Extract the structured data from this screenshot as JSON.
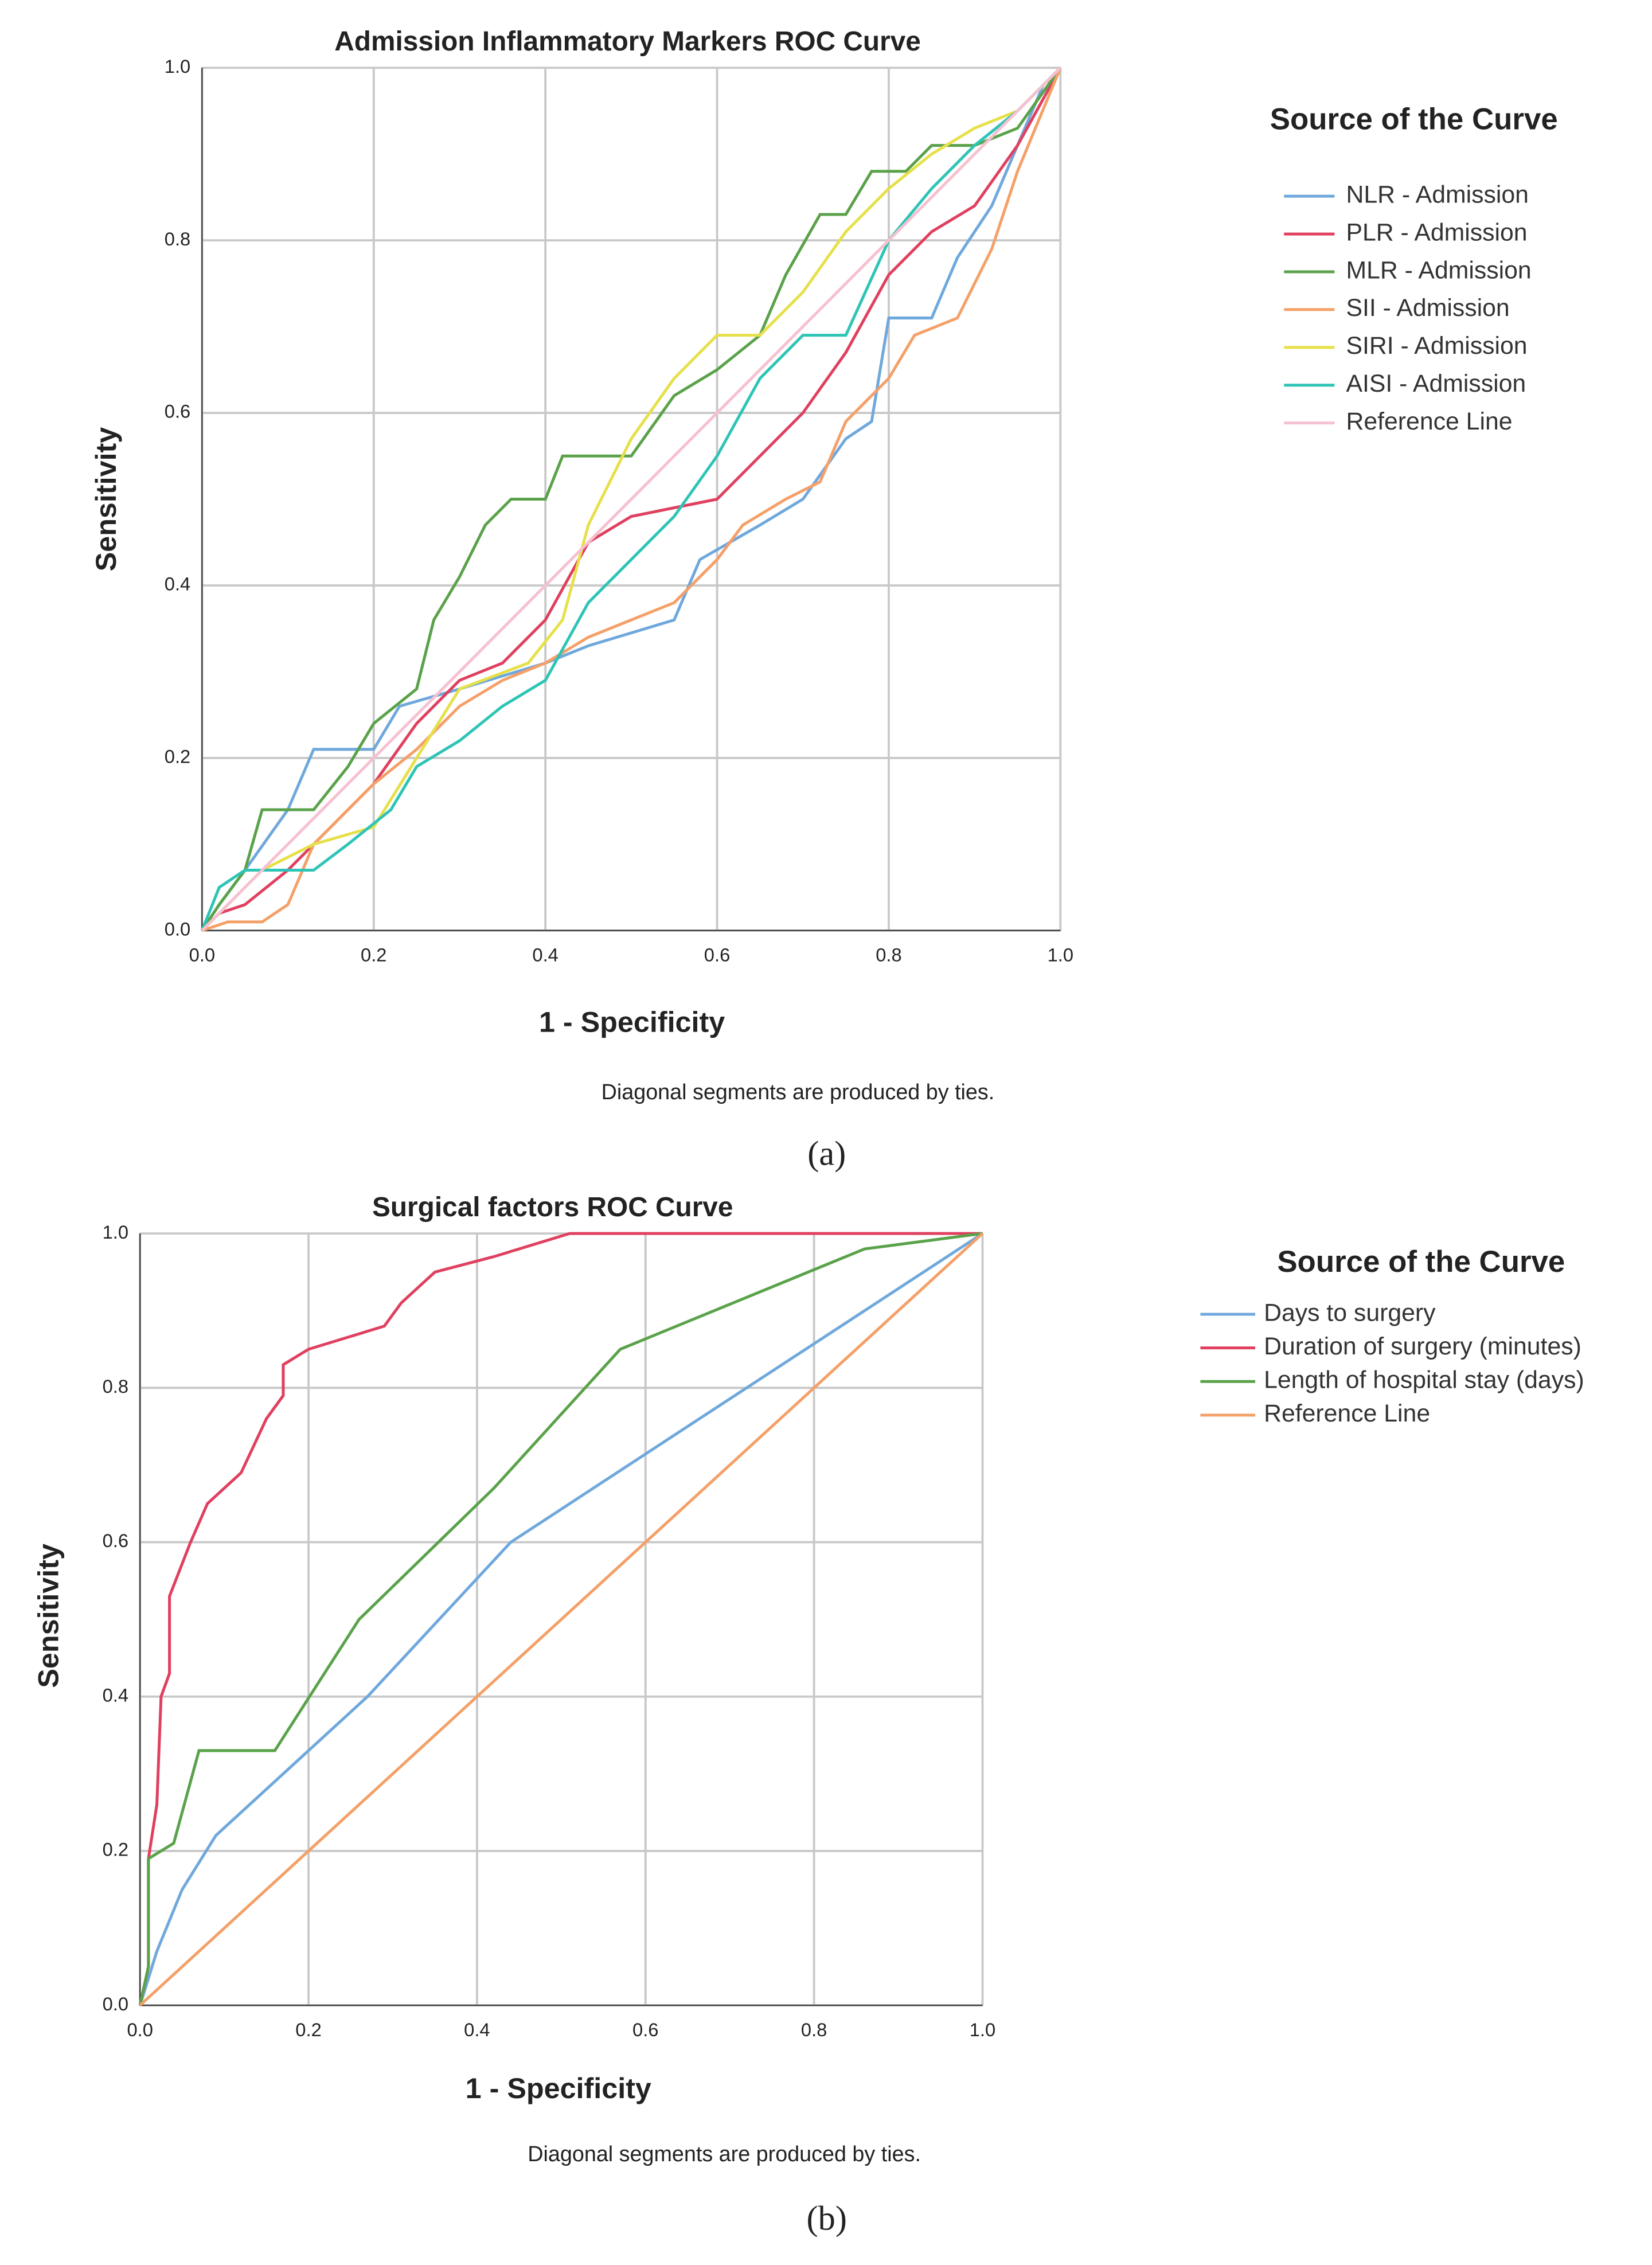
{
  "chart_data": [
    {
      "type": "line",
      "title": "Admission Inflammatory Markers ROC Curve",
      "x_label": "1 - Specificity",
      "y_label": "Sensitivity",
      "legend_title": "Source of the Curve",
      "annotation": "Diagonal segments are produced by ties.",
      "caption": "(a)",
      "grid": true,
      "xlim": [
        0,
        1
      ],
      "ylim": [
        0,
        1
      ],
      "xticks": [
        {
          "value": 0,
          "label": "0.0"
        },
        0.2,
        0.4,
        0.6,
        0.8,
        {
          "value": 1,
          "label": "1.0"
        }
      ],
      "yticks": [
        {
          "value": 0,
          "label": "0.0"
        },
        0.2,
        0.4,
        0.6,
        0.8,
        {
          "value": 1,
          "label": "1.0"
        }
      ],
      "series": [
        {
          "name": "NLR - Admission",
          "color": "#6fa8dc",
          "x": [
            0,
            0.02,
            0.05,
            0.1,
            0.13,
            0.2,
            0.23,
            0.3,
            0.4,
            0.45,
            0.55,
            0.58,
            0.65,
            0.7,
            0.75,
            0.78,
            0.8,
            0.85,
            0.88,
            0.92,
            0.95,
            0.98,
            1
          ],
          "values": [
            0,
            0.03,
            0.07,
            0.14,
            0.21,
            0.21,
            0.26,
            0.28,
            0.31,
            0.33,
            0.36,
            0.43,
            0.47,
            0.5,
            0.57,
            0.59,
            0.71,
            0.71,
            0.78,
            0.84,
            0.91,
            0.98,
            1
          ]
        },
        {
          "name": "PLR - Admission",
          "color": "#e0405f",
          "x": [
            0,
            0.02,
            0.05,
            0.1,
            0.15,
            0.2,
            0.25,
            0.3,
            0.35,
            0.4,
            0.45,
            0.5,
            0.6,
            0.65,
            0.7,
            0.75,
            0.8,
            0.85,
            0.9,
            0.95,
            1
          ],
          "values": [
            0,
            0.02,
            0.03,
            0.07,
            0.12,
            0.17,
            0.24,
            0.29,
            0.31,
            0.36,
            0.45,
            0.48,
            0.5,
            0.55,
            0.6,
            0.67,
            0.76,
            0.81,
            0.84,
            0.91,
            1
          ]
        },
        {
          "name": "MLR - Admission",
          "color": "#5aa24a",
          "x": [
            0,
            0.02,
            0.05,
            0.07,
            0.13,
            0.17,
            0.2,
            0.25,
            0.27,
            0.3,
            0.33,
            0.36,
            0.4,
            0.42,
            0.5,
            0.55,
            0.6,
            0.65,
            0.68,
            0.72,
            0.75,
            0.78,
            0.82,
            0.85,
            0.9,
            0.95,
            1
          ],
          "values": [
            0,
            0.03,
            0.07,
            0.14,
            0.14,
            0.19,
            0.24,
            0.28,
            0.36,
            0.41,
            0.47,
            0.5,
            0.5,
            0.55,
            0.55,
            0.62,
            0.65,
            0.69,
            0.76,
            0.83,
            0.83,
            0.88,
            0.88,
            0.91,
            0.91,
            0.93,
            1
          ]
        },
        {
          "name": "SII - Admission",
          "color": "#f4a068",
          "x": [
            0,
            0.03,
            0.07,
            0.1,
            0.13,
            0.2,
            0.25,
            0.3,
            0.35,
            0.4,
            0.45,
            0.5,
            0.55,
            0.6,
            0.63,
            0.68,
            0.72,
            0.75,
            0.8,
            0.83,
            0.88,
            0.92,
            0.95,
            1
          ],
          "values": [
            0,
            0.01,
            0.01,
            0.03,
            0.1,
            0.17,
            0.21,
            0.26,
            0.29,
            0.31,
            0.34,
            0.36,
            0.38,
            0.43,
            0.47,
            0.5,
            0.52,
            0.59,
            0.64,
            0.69,
            0.71,
            0.79,
            0.88,
            1
          ]
        },
        {
          "name": "SIRI - Admission",
          "color": "#e6e04a",
          "x": [
            0,
            0.03,
            0.07,
            0.13,
            0.2,
            0.25,
            0.3,
            0.38,
            0.42,
            0.45,
            0.5,
            0.55,
            0.6,
            0.65,
            0.7,
            0.75,
            0.8,
            0.85,
            0.9,
            0.95,
            1
          ],
          "values": [
            0,
            0.03,
            0.07,
            0.1,
            0.12,
            0.2,
            0.28,
            0.31,
            0.36,
            0.47,
            0.57,
            0.64,
            0.69,
            0.69,
            0.74,
            0.81,
            0.86,
            0.9,
            0.93,
            0.95,
            1
          ]
        },
        {
          "name": "AISI - Admission",
          "color": "#2ec4b6",
          "x": [
            0,
            0.02,
            0.05,
            0.1,
            0.13,
            0.17,
            0.22,
            0.25,
            0.3,
            0.35,
            0.4,
            0.45,
            0.5,
            0.55,
            0.6,
            0.65,
            0.7,
            0.75,
            0.8,
            0.85,
            0.9,
            0.95,
            1
          ],
          "values": [
            0,
            0.05,
            0.07,
            0.07,
            0.07,
            0.1,
            0.14,
            0.19,
            0.22,
            0.26,
            0.29,
            0.38,
            0.43,
            0.48,
            0.55,
            0.64,
            0.69,
            0.69,
            0.8,
            0.86,
            0.91,
            0.95,
            1
          ]
        },
        {
          "name": "Reference Line",
          "color": "#f6c0d0",
          "x": [
            0,
            1
          ],
          "values": [
            0,
            1
          ]
        }
      ]
    },
    {
      "type": "line",
      "title": "Surgical factors ROC Curve",
      "x_label": "1 - Specificity",
      "y_label": "Sensitivity",
      "legend_title": "Source of the Curve",
      "annotation": "Diagonal segments are produced by ties.",
      "caption": "(b)",
      "grid": true,
      "xlim": [
        0,
        1
      ],
      "ylim": [
        0,
        1
      ],
      "xticks": [
        {
          "value": 0,
          "label": "0.0"
        },
        0.2,
        0.4,
        0.6,
        0.8,
        {
          "value": 1,
          "label": "1.0"
        }
      ],
      "yticks": [
        {
          "value": 0,
          "label": "0.0"
        },
        0.2,
        0.4,
        0.6,
        0.8,
        {
          "value": 1,
          "label": "1.0"
        }
      ],
      "series": [
        {
          "name": "Days to surgery",
          "color": "#6fa8dc",
          "x": [
            0,
            0.02,
            0.05,
            0.09,
            0.27,
            0.44,
            1
          ],
          "values": [
            0,
            0.07,
            0.15,
            0.22,
            0.4,
            0.6,
            1
          ]
        },
        {
          "name": "Duration of surgery (minutes)",
          "color": "#e0405f",
          "x": [
            0,
            0.01,
            0.01,
            0.02,
            0.025,
            0.035,
            0.035,
            0.06,
            0.08,
            0.12,
            0.15,
            0.17,
            0.17,
            0.2,
            0.29,
            0.31,
            0.35,
            0.42,
            0.51,
            1
          ],
          "values": [
            0,
            0.05,
            0.19,
            0.26,
            0.4,
            0.43,
            0.53,
            0.6,
            0.65,
            0.69,
            0.76,
            0.79,
            0.83,
            0.85,
            0.88,
            0.91,
            0.95,
            0.97,
            1,
            1
          ]
        },
        {
          "name": "Length of hospital stay (days)",
          "color": "#5aa24a",
          "x": [
            0,
            0.01,
            0.01,
            0.04,
            0.07,
            0.16,
            0.26,
            0.42,
            0.57,
            0.86,
            1
          ],
          "values": [
            0,
            0.05,
            0.19,
            0.21,
            0.33,
            0.33,
            0.5,
            0.67,
            0.85,
            0.98,
            1
          ]
        },
        {
          "name": "Reference Line",
          "color": "#f4a068",
          "x": [
            0,
            1
          ],
          "values": [
            0,
            1
          ]
        }
      ]
    }
  ]
}
